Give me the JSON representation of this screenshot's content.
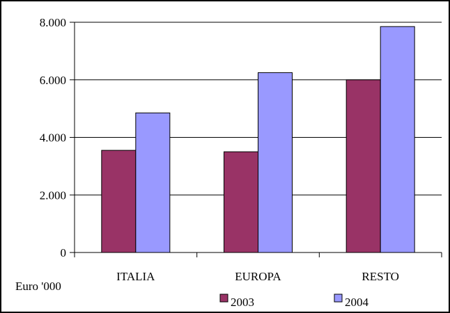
{
  "chart_data": {
    "type": "bar",
    "categories": [
      "ITALIA",
      "EUROPA",
      "RESTO"
    ],
    "series": [
      {
        "name": "2003",
        "values": [
          3550,
          3500,
          6000
        ],
        "color": "#993366"
      },
      {
        "name": "2004",
        "values": [
          4850,
          6250,
          7850
        ],
        "color": "#9999ff"
      }
    ],
    "yticks": [
      {
        "value": 0,
        "label": "0"
      },
      {
        "value": 2000,
        "label": "2.000"
      },
      {
        "value": 4000,
        "label": "4.000"
      },
      {
        "value": 6000,
        "label": "6.000"
      },
      {
        "value": 8000,
        "label": "8.000"
      }
    ],
    "ylim": [
      0,
      8000
    ],
    "unit_label": "Euro '000",
    "grid": true,
    "legend_position": "bottom"
  }
}
